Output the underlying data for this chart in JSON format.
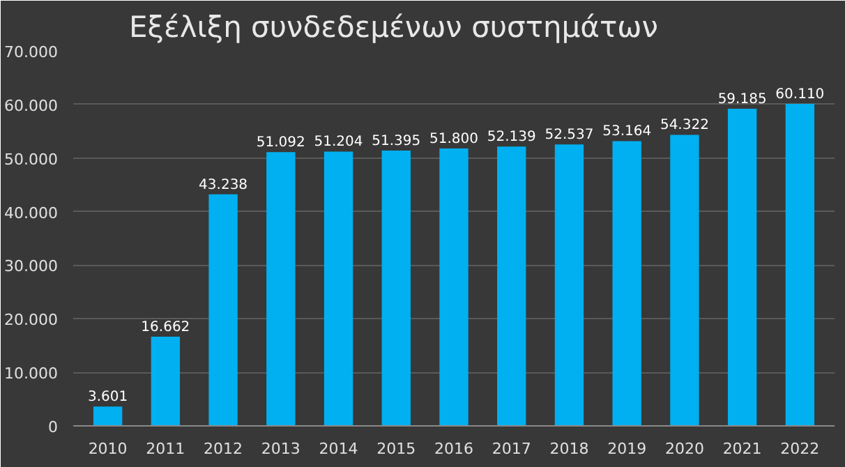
{
  "chart_data": {
    "type": "bar",
    "title": "Εξέλιξη συνδεδεμένων συστημάτων",
    "categories": [
      "2010",
      "2011",
      "2012",
      "2013",
      "2014",
      "2015",
      "2016",
      "2017",
      "2018",
      "2019",
      "2020",
      "2021",
      "2022"
    ],
    "values": [
      3601,
      16662,
      43238,
      51092,
      51204,
      51395,
      51800,
      52139,
      52537,
      53164,
      54322,
      59185,
      60110
    ],
    "value_labels": [
      "3.601",
      "16.662",
      "43.238",
      "51.092",
      "51.204",
      "51.395",
      "51.800",
      "52.139",
      "52.537",
      "53.164",
      "54.322",
      "59.185",
      "60.110"
    ],
    "color": "#00b0f0",
    "ylim": [
      0,
      70000
    ],
    "yticks": [
      0,
      {
        "value": 10000,
        "label": "10.000"
      },
      {
        "value": 20000,
        "label": "20.000"
      },
      {
        "value": 30000,
        "label": "30.000"
      },
      {
        "value": 40000,
        "label": "40.000"
      },
      {
        "value": 50000,
        "label": "50.000"
      },
      {
        "value": 60000,
        "label": "60.000"
      },
      {
        "value": 70000,
        "label": "70.000"
      }
    ],
    "grid": "y"
  }
}
